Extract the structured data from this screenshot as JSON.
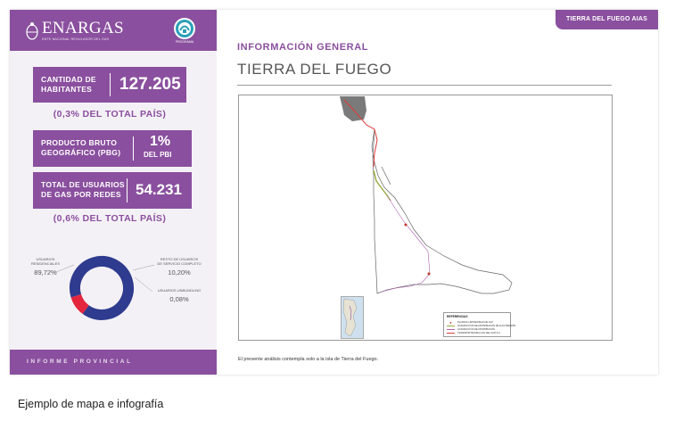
{
  "sidebar": {
    "logo_name": "ENARGAS",
    "logo_subtitle": "ENTE NACIONAL REGULADOR DEL GAS",
    "badge_caption": "PROGRAMA",
    "stats": [
      {
        "label_line1": "CANTIDAD DE",
        "label_line2": "HABITANTES",
        "value": "127.205",
        "note": "(0,3% DEL TOTAL PAÍS)"
      },
      {
        "label_line1": "PRODUCTO BRUTO",
        "label_line2": "GEOGRÁFICO (PBG)",
        "value": "1%",
        "value_sub": "DEL PBI"
      },
      {
        "label_line1": "TOTAL DE USUARIOS",
        "label_line2": "DE GAS POR REDES",
        "value": "54.231",
        "note": "(0,6% DEL TOTAL PAÍS)"
      }
    ],
    "donut": {
      "segments": [
        {
          "label_line1": "USUARIOS",
          "label_line2": "RESIDENCIALES",
          "value": "89,72%",
          "fraction": 0.8972,
          "color": "#2e3b8e"
        },
        {
          "label_line1": "RESTO DE USUARIOS",
          "label_line2": "DE SERVICIO COMPLETO",
          "value": "10,20%",
          "fraction": 0.102,
          "color": "#e3263d"
        },
        {
          "label_line1": "USUARIOS UNBUNDLING",
          "label_line2": "",
          "value": "0,08%",
          "fraction": 0.0008,
          "color": "#8a4f9e"
        }
      ]
    },
    "footer": "INFORME PROVINCIAL"
  },
  "header": {
    "tag": "TIERRA DEL FUEGO AIAS",
    "section_title": "INFORMACIÓN GENERAL",
    "province_title": "TIERRA DEL FUEGO"
  },
  "map": {
    "legend_title": "REFERENCIAS",
    "legend_items": [
      {
        "label": "PLANTAS LIMITADORAS DE GLP",
        "color": "#c0392b"
      },
      {
        "label": "GASODUCTOS DE DISTRIBUCIÓN DE ALTA PRESIÓN",
        "color": "#9aaa3a"
      },
      {
        "label": "GASODUCTOS DE DISTRIBUCIÓN",
        "color": "#b15fb7"
      },
      {
        "label": "TRANSPORTADORA GAS DEL SUR S.A.",
        "color": "#e03a3a"
      }
    ],
    "footnote": "El presente análisis contempla solo a la isla de Tierra del Fuego."
  },
  "colors": {
    "accent": "#8a4f9e",
    "panel_bg": "#f4f1f6",
    "title_gray": "#555555"
  },
  "caption": "Ejemplo de mapa e infografía"
}
